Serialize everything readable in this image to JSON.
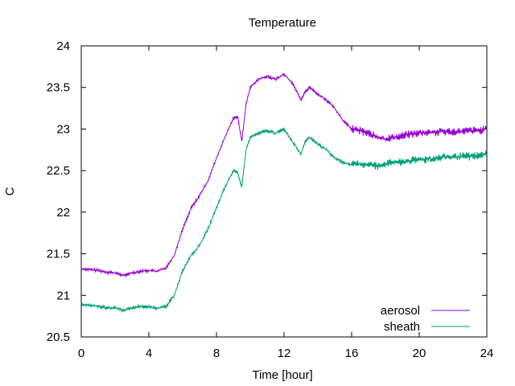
{
  "chart_data": {
    "type": "line",
    "title": "Temperature",
    "xlabel": "Time [hour]",
    "ylabel": "C",
    "xlim": [
      0,
      24
    ],
    "ylim": [
      20.5,
      24
    ],
    "xticks": [
      0,
      4,
      8,
      12,
      16,
      20,
      24
    ],
    "xtick_labels": [
      "0",
      "4",
      "8",
      "12",
      "16",
      "20",
      "24"
    ],
    "yticks": [
      20.5,
      21,
      21.5,
      22,
      22.5,
      23,
      23.5,
      24
    ],
    "ytick_labels": [
      "20.5",
      "21",
      "21.5",
      "22",
      "22.5",
      "23",
      "23.5",
      "24"
    ],
    "grid": false,
    "legend_position": "bottom-right",
    "series": [
      {
        "name": "aerosol",
        "color": "#9400d3",
        "x": [
          0,
          0.5,
          1,
          1.5,
          2,
          2.5,
          3,
          3.5,
          4,
          4.5,
          5,
          5.5,
          6,
          6.5,
          7,
          7.5,
          8,
          8.5,
          9,
          9.25,
          9.5,
          9.75,
          10,
          10.5,
          11,
          11.5,
          12,
          12.5,
          13,
          13.25,
          13.5,
          14,
          14.5,
          15,
          15.5,
          16,
          16.5,
          17,
          17.5,
          18,
          18.5,
          19,
          19.5,
          20,
          20.5,
          21,
          21.5,
          22,
          22.5,
          23,
          23.5,
          24
        ],
        "y": [
          21.32,
          21.31,
          21.3,
          21.28,
          21.27,
          21.24,
          21.27,
          21.29,
          21.3,
          21.29,
          21.33,
          21.48,
          21.8,
          22.05,
          22.2,
          22.38,
          22.65,
          22.9,
          23.13,
          23.15,
          22.85,
          23.3,
          23.5,
          23.6,
          23.63,
          23.6,
          23.66,
          23.55,
          23.35,
          23.45,
          23.5,
          23.42,
          23.35,
          23.25,
          23.1,
          23.0,
          22.98,
          22.95,
          22.9,
          22.88,
          22.9,
          22.92,
          22.94,
          22.95,
          22.96,
          22.96,
          22.97,
          22.97,
          22.97,
          22.98,
          22.98,
          23.0
        ]
      },
      {
        "name": "sheath",
        "color": "#009e73",
        "x": [
          0,
          0.5,
          1,
          1.5,
          2,
          2.5,
          3,
          3.5,
          4,
          4.5,
          5,
          5.5,
          6,
          6.5,
          7,
          7.5,
          8,
          8.5,
          9,
          9.25,
          9.5,
          9.75,
          10,
          10.5,
          11,
          11.5,
          12,
          12.5,
          13,
          13.25,
          13.5,
          14,
          14.5,
          15,
          15.5,
          16,
          16.5,
          17,
          17.5,
          18,
          18.5,
          19,
          19.5,
          20,
          20.5,
          21,
          21.5,
          22,
          22.5,
          23,
          23.5,
          24
        ],
        "y": [
          20.89,
          20.88,
          20.87,
          20.85,
          20.85,
          20.82,
          20.85,
          20.87,
          20.86,
          20.85,
          20.86,
          21.0,
          21.3,
          21.48,
          21.6,
          21.8,
          22.05,
          22.3,
          22.5,
          22.48,
          22.3,
          22.75,
          22.9,
          22.95,
          22.98,
          22.95,
          23.0,
          22.85,
          22.7,
          22.85,
          22.9,
          22.82,
          22.75,
          22.65,
          22.6,
          22.57,
          22.58,
          22.57,
          22.56,
          22.58,
          22.6,
          22.6,
          22.62,
          22.63,
          22.64,
          22.65,
          22.66,
          22.66,
          22.67,
          22.67,
          22.68,
          22.7
        ]
      }
    ]
  }
}
